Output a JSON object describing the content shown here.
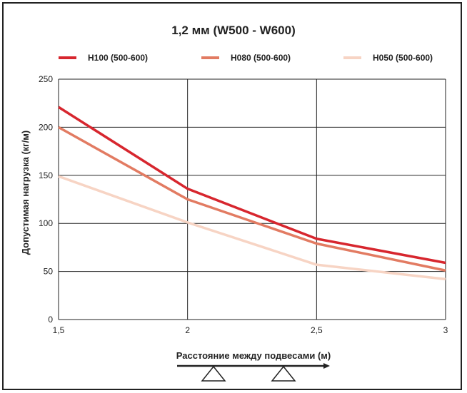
{
  "chart_data": {
    "type": "line",
    "title": "1,2 мм (W500 - W600)",
    "xlabel": "Расстояние между подвесами (м)",
    "ylabel": "Допустимая нагрузка (кг/м)",
    "x": [
      1.5,
      2,
      2.5,
      3
    ],
    "x_tick_labels": [
      "1,5",
      "2",
      "2,5",
      "3"
    ],
    "y_ticks": [
      0,
      50,
      100,
      150,
      200,
      250
    ],
    "y_tick_labels": [
      "0",
      "50",
      "100",
      "150",
      "200",
      "250"
    ],
    "xlim": [
      1.5,
      3
    ],
    "ylim": [
      0,
      250
    ],
    "grid": true,
    "legend_position": "top",
    "series": [
      {
        "name": "H100 (500-600)",
        "color": "#d7262e",
        "values": [
          221,
          136,
          84,
          59
        ]
      },
      {
        "name": "H080 (500-600)",
        "color": "#e27b62",
        "values": [
          200,
          125,
          79,
          51
        ]
      },
      {
        "name": "H050 (500-600)",
        "color": "#f7d4c4",
        "values": [
          149,
          101,
          57,
          42
        ]
      }
    ]
  }
}
